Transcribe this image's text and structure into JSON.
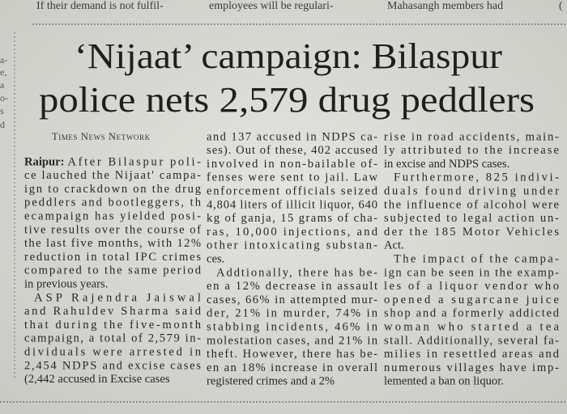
{
  "top_strip": [
    "If their demand is not fulfil-",
    "employees will be regulari-",
    "Mahasangh members had",
    "("
  ],
  "left_margin": [
    "a-",
    "e,",
    "a",
    "o-",
    "s",
    "d"
  ],
  "article": {
    "headline": [
      "‘Nijaat’ campaign: Bilaspur",
      "police nets 2,579 drug peddlers"
    ],
    "byline": "Times News Network",
    "dateline": "Raipur:",
    "columns": [
      {
        "paragraphs": [
          {
            "lines": [
              "After Bilaspur poli-",
              "ce lauched the Nijaat' campa-",
              "ign to crackdown on the drug",
              "peddlers and bootleggers, th",
              "ecampaign has yielded posi-",
              "tive results over the course of",
              "the last five months, with 12%",
              "reduction in total IPC crimes",
              "compared to the same period",
              "in previous years."
            ]
          },
          {
            "lines": [
              "ASP Rajendra Jaiswal",
              "and Rahuldev Sharma said",
              "that during the five-month",
              "campaign, a total of 2,579 in-",
              "dividuals were arrested in",
              "2,454 NDPS and excise cases",
              "(2,442 accused in Excise cases"
            ]
          }
        ]
      },
      {
        "paragraphs": [
          {
            "lines": [
              "and 137 accused in NDPS ca-",
              "ses). Out of these, 402 accused",
              "involved in non-bailable of-",
              "fenses were sent to jail. Law",
              "enforcement officials seized",
              "4,804 liters of illicit liquor, 640",
              "kg of ganja, 15 grams of cha-",
              "ras, 10,000 injections, and",
              "other intoxicating substan-",
              "ces."
            ]
          },
          {
            "lines": [
              "Addtionally, there has be-",
              "en a 12% decrease in assault",
              "cases, 66% in attempted mur-",
              "der, 21% in murder, 74% in",
              "stabbing incidents, 46% in",
              "molestation cases, and 21% in",
              "theft. However, there has be-",
              "en an 18% increase in overall",
              "registered crimes and a 2%"
            ]
          }
        ]
      },
      {
        "paragraphs": [
          {
            "lines": [
              "rise in road accidents, main-",
              "ly attributed to the increase",
              "in excise and NDPS cases."
            ]
          },
          {
            "lines": [
              "Furthermore, 825 indivi-",
              "duals found driving under",
              "the influence of alcohol were",
              "subjected to legal action un-",
              "der the 185 Motor Vehicles",
              "Act."
            ]
          },
          {
            "lines": [
              "The impact of the campa-",
              "ign can be seen in the examp-",
              "les of a liquor vendor who",
              "opened a sugarcane juice",
              "shop and a formerly addicted",
              "woman who started a tea",
              "stall. Additionally, several fa-",
              "milies in resettled areas and",
              "numerous villages have imp-",
              "lemented a ban on liquor."
            ]
          }
        ]
      }
    ]
  }
}
